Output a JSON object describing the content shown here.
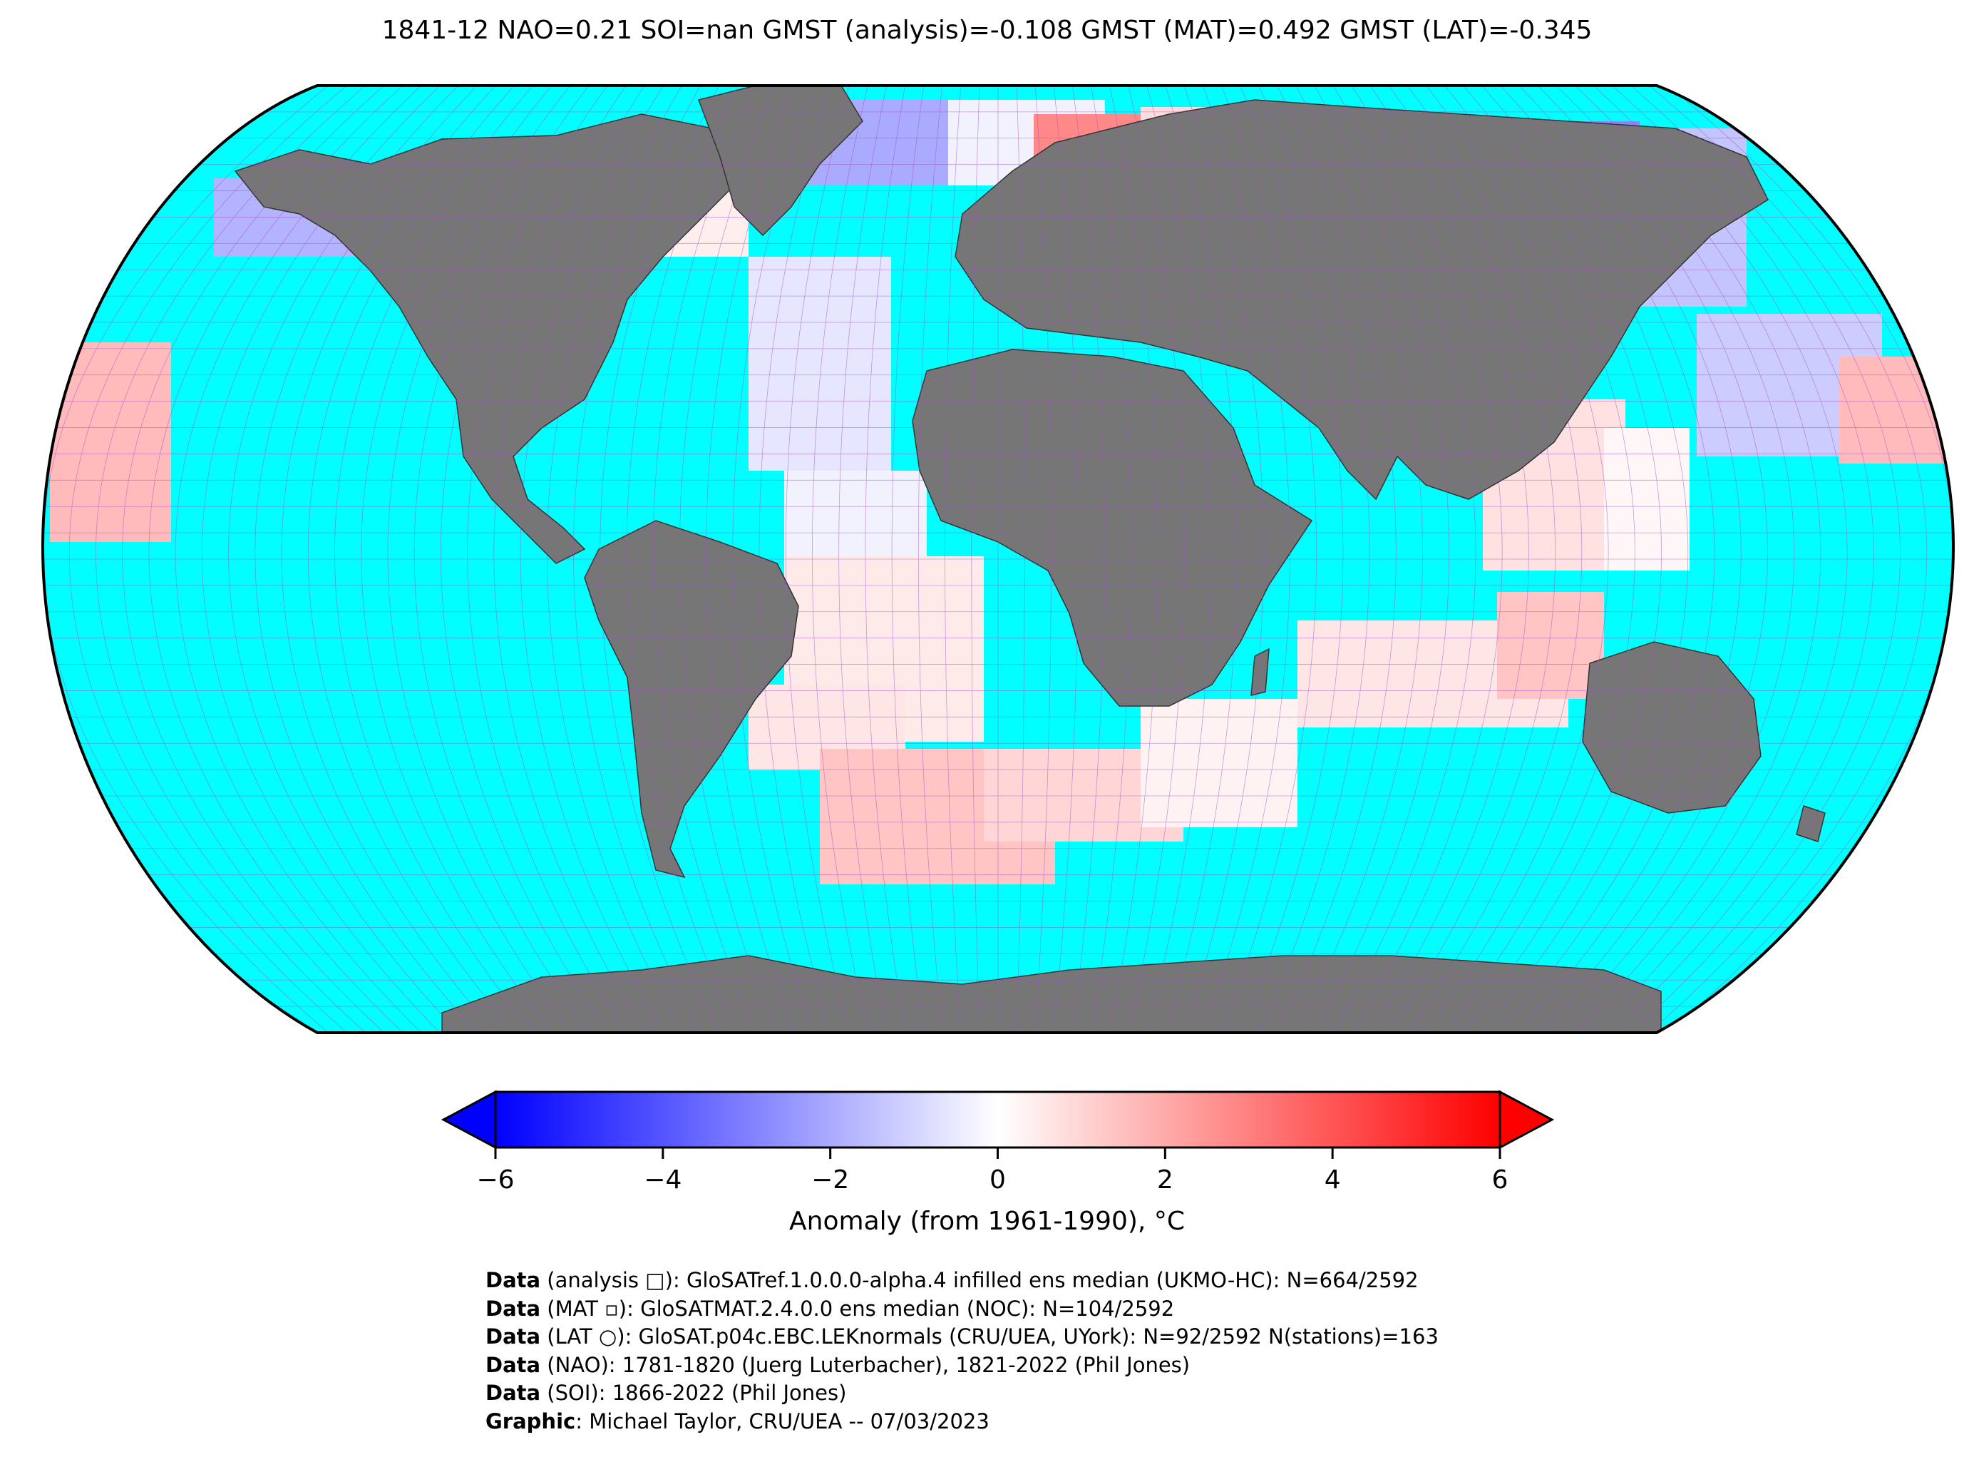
{
  "title": "1841-12 NAO=0.21 SOI=nan GMST (analysis)=-0.108 GMST (MAT)=0.492 GMST (LAT)=-0.345",
  "colors": {
    "ocean": "#00ffff",
    "land": "#767676",
    "cold": "#0000ff",
    "warm": "#ff0000",
    "grid": "#a050c8"
  },
  "colorbar": {
    "ticks": [
      "−6",
      "−4",
      "−2",
      "0",
      "2",
      "4",
      "6"
    ],
    "label": "Anomaly (from 1961-1990), °C",
    "extend": "both"
  },
  "credits": [
    {
      "bold": "Data",
      "text": " (analysis □): GloSATref.1.0.0.0-alpha.4 infilled ens median (UKMO-HC): N=664/2592"
    },
    {
      "bold": "Data",
      "text": " (MAT ▫): GloSATMAT.2.4.0.0 ens median (NOC): N=104/2592"
    },
    {
      "bold": "Data",
      "text": " (LAT ○): GloSAT.p04c.EBC.LEKnormals (CRU/UEA, UYork): N=92/2592 N(stations)=163"
    },
    {
      "bold": "Data",
      "text": " (NAO): 1781-1820 (Juerg Luterbacher), 1821-2022 (Phil Jones)"
    },
    {
      "bold": "Data",
      "text": " (SOI): 1866-2022 (Phil Jones)"
    },
    {
      "bold": "Graphic",
      "text": ": Michael Taylor, CRU/UEA -- 07/03/2023"
    }
  ]
}
